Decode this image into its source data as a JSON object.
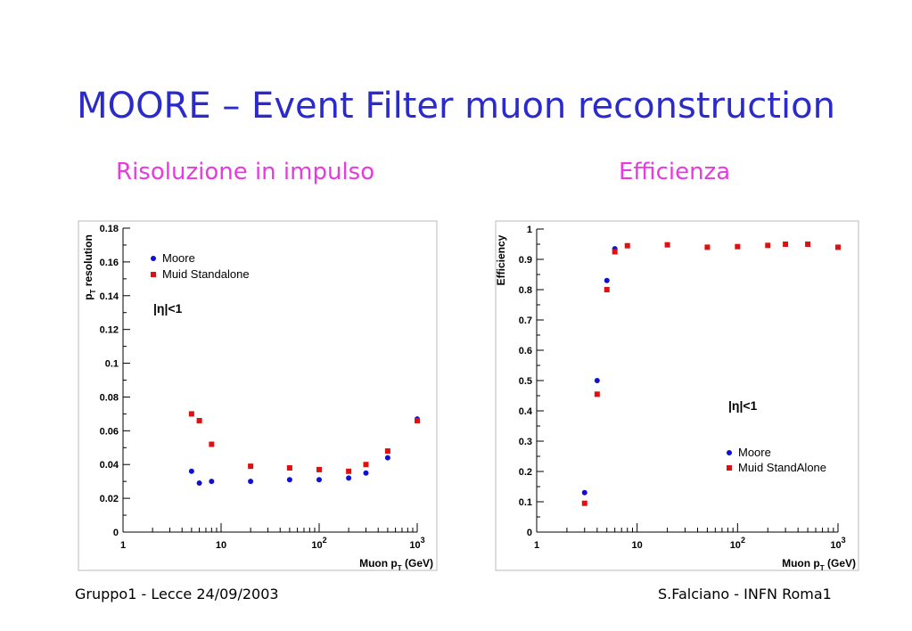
{
  "title": "MOORE – Event Filter muon reconstruction",
  "subtitle_left": "Risoluzione in impulso",
  "subtitle_right": "Efficienza",
  "footer_left": "Gruppo1 - Lecce 24/09/2003",
  "footer_right": "S.Falciano - INFN Roma1",
  "colors": {
    "title": "#2b2bcc",
    "subtitle": "#e83adf",
    "moore": "#1010d0",
    "muid": "#e01010"
  },
  "chart_data": [
    {
      "type": "scatter",
      "ylabel": "pT resolution",
      "xlabel": "Muon pT (GeV)",
      "xscale": "log",
      "xlim": [
        1,
        1000
      ],
      "ylim": [
        0,
        0.18
      ],
      "xticks": [
        "1",
        "10",
        "10^2",
        "10^3"
      ],
      "yticks": [
        "0",
        "0.02",
        "0.04",
        "0.06",
        "0.08",
        "0.1",
        "0.12",
        "0.14",
        "0.16",
        "0.18"
      ],
      "annotation": "|η|<1",
      "legend_position": "top-left",
      "series": [
        {
          "name": "Moore",
          "marker": "circle",
          "x": [
            5,
            6,
            8,
            20,
            50,
            100,
            200,
            300,
            500,
            1000
          ],
          "y": [
            0.036,
            0.029,
            0.03,
            0.03,
            0.031,
            0.031,
            0.032,
            0.035,
            0.044,
            0.067
          ]
        },
        {
          "name": "Muid Standalone",
          "marker": "square",
          "x": [
            5,
            6,
            8,
            20,
            50,
            100,
            200,
            300,
            500,
            1000
          ],
          "y": [
            0.07,
            0.066,
            0.052,
            0.039,
            0.038,
            0.037,
            0.036,
            0.04,
            0.048,
            0.066
          ]
        }
      ]
    },
    {
      "type": "scatter",
      "ylabel": "Efficiency",
      "xlabel": "Muon pT (GeV)",
      "xscale": "log",
      "xlim": [
        1,
        1000
      ],
      "ylim": [
        0,
        1
      ],
      "xticks": [
        "1",
        "10",
        "10^2",
        "10^3"
      ],
      "yticks": [
        "0",
        "0.1",
        "0.2",
        "0.3",
        "0.4",
        "0.5",
        "0.6",
        "0.7",
        "0.8",
        "0.9",
        "1"
      ],
      "annotation": "|η|<1",
      "legend_position": "bottom-right",
      "series": [
        {
          "name": "Moore",
          "marker": "circle",
          "x": [
            3,
            4,
            5,
            6
          ],
          "y": [
            0.13,
            0.5,
            0.83,
            0.935
          ]
        },
        {
          "name": "Muid StandAlone",
          "marker": "square",
          "x": [
            3,
            4,
            5,
            6,
            8,
            20,
            50,
            100,
            200,
            300,
            500,
            1000
          ],
          "y": [
            0.095,
            0.455,
            0.8,
            0.925,
            0.945,
            0.948,
            0.94,
            0.942,
            0.946,
            0.95,
            0.95,
            0.94
          ]
        }
      ]
    }
  ]
}
